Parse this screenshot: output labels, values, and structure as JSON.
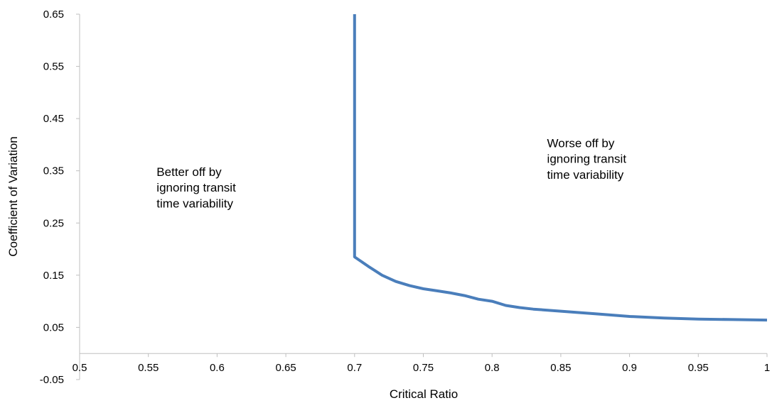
{
  "chart_data": {
    "type": "line",
    "title": "",
    "xlabel": "Critical Ratio",
    "ylabel": "Coefficient of Variation",
    "xlim": [
      0.5,
      1.0
    ],
    "ylim": [
      -0.05,
      0.65
    ],
    "grid": false,
    "legend": "none",
    "x_ticks": [
      0.5,
      0.55,
      0.6,
      0.65,
      0.7,
      0.75,
      0.8,
      0.85,
      0.9,
      0.95,
      1.0
    ],
    "x_tick_labels": [
      "0.5",
      "0.55",
      "0.6",
      "0.65",
      "0.7",
      "0.75",
      "0.8",
      "0.85",
      "0.9",
      "0.95",
      "1"
    ],
    "y_ticks": [
      -0.05,
      0.05,
      0.15,
      0.25,
      0.35,
      0.45,
      0.55,
      0.65
    ],
    "y_tick_labels": [
      "-0.05",
      "0.05",
      "0.15",
      "0.25",
      "0.35",
      "0.45",
      "0.55",
      "0.65"
    ],
    "series": [
      {
        "color": "#4a7ebb",
        "points": [
          [
            0.7,
            0.65
          ],
          [
            0.7,
            0.185
          ],
          [
            0.71,
            0.167
          ],
          [
            0.72,
            0.15
          ],
          [
            0.73,
            0.138
          ],
          [
            0.74,
            0.13
          ],
          [
            0.75,
            0.124
          ],
          [
            0.76,
            0.12
          ],
          [
            0.77,
            0.116
          ],
          [
            0.78,
            0.111
          ],
          [
            0.79,
            0.104
          ],
          [
            0.8,
            0.1
          ],
          [
            0.81,
            0.092
          ],
          [
            0.82,
            0.088
          ],
          [
            0.83,
            0.085
          ],
          [
            0.85,
            0.081
          ],
          [
            0.875,
            0.076
          ],
          [
            0.9,
            0.071
          ],
          [
            0.925,
            0.068
          ],
          [
            0.95,
            0.066
          ],
          [
            0.975,
            0.065
          ],
          [
            1.0,
            0.064
          ]
        ]
      }
    ],
    "annotations": [
      {
        "lines": [
          "Better off by",
          "ignoring transit",
          "time variability"
        ],
        "x": 0.556,
        "y": 0.34
      },
      {
        "lines": [
          "Worse off by",
          "ignoring transit",
          "time variability"
        ],
        "x": 0.84,
        "y": 0.395
      }
    ]
  }
}
